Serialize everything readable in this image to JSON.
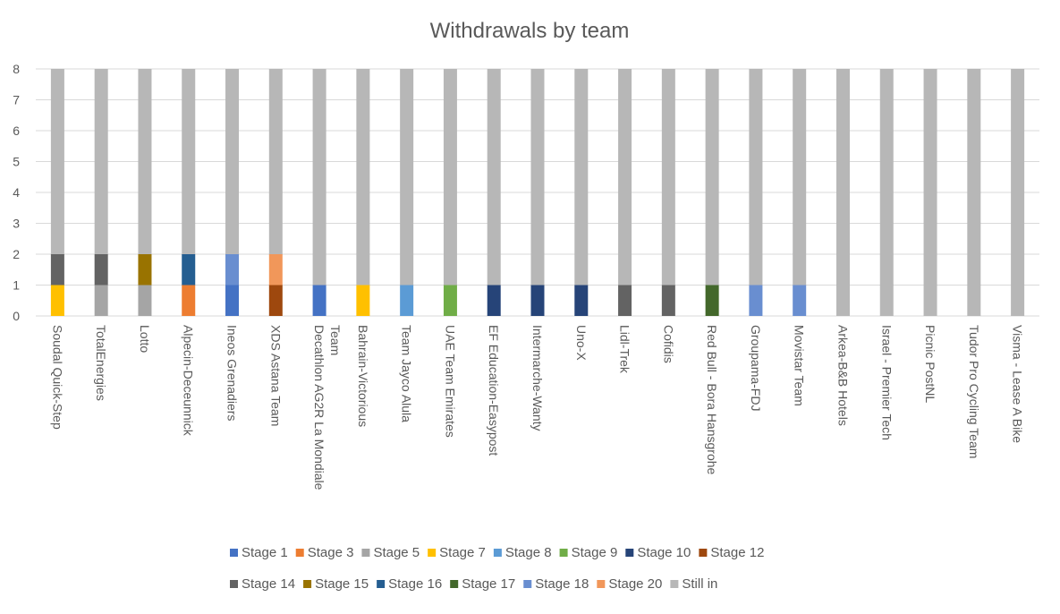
{
  "chart_data": {
    "type": "bar",
    "stacked": true,
    "title": "Withdrawals by team",
    "ylim": [
      0,
      8
    ],
    "yticks": [
      0,
      1,
      2,
      3,
      4,
      5,
      6,
      7,
      8
    ],
    "grid": true,
    "legend_position": "bottom",
    "categories": [
      {
        "line1": "Soudal Quick-Step",
        "line2": ""
      },
      {
        "line1": "TotalEnergies",
        "line2": ""
      },
      {
        "line1": "Lotto",
        "line2": ""
      },
      {
        "line1": "Alpecin-Deceunnick",
        "line2": ""
      },
      {
        "line1": "Ineos Grenadiers",
        "line2": ""
      },
      {
        "line1": "XDS Astana Team",
        "line2": ""
      },
      {
        "line1": "Decathlon AG2R La Mondiale",
        "line2": "Team"
      },
      {
        "line1": "Bahrain-Victorious",
        "line2": ""
      },
      {
        "line1": "Team Jayco Alula",
        "line2": ""
      },
      {
        "line1": "UAE Team Emirates",
        "line2": ""
      },
      {
        "line1": "EF Education-Easypost",
        "line2": ""
      },
      {
        "line1": "Intermarche-Wanty",
        "line2": ""
      },
      {
        "line1": "Uno-X",
        "line2": ""
      },
      {
        "line1": "Lidl-Trek",
        "line2": ""
      },
      {
        "line1": "Cofidis",
        "line2": ""
      },
      {
        "line1": "Red Bull - Bora Hansgrohe",
        "line2": ""
      },
      {
        "line1": "Groupama-FDJ",
        "line2": ""
      },
      {
        "line1": "Movistar Team",
        "line2": ""
      },
      {
        "line1": "Arkea-B&B Hotels",
        "line2": ""
      },
      {
        "line1": "Israel - Premier Tech",
        "line2": ""
      },
      {
        "line1": "Picnic PostNL",
        "line2": ""
      },
      {
        "line1": "Tudor Pro Cycling Team",
        "line2": ""
      },
      {
        "line1": "Visma - Lease A Bike",
        "line2": ""
      }
    ],
    "series": [
      {
        "name": "Stage 1",
        "color": "#4472C4",
        "values": [
          0,
          0,
          0,
          0,
          1,
          0,
          1,
          0,
          0,
          0,
          0,
          0,
          0,
          0,
          0,
          0,
          0,
          0,
          0,
          0,
          0,
          0,
          0
        ]
      },
      {
        "name": "Stage 3",
        "color": "#ED7D31",
        "values": [
          0,
          0,
          0,
          1,
          0,
          0,
          0,
          0,
          0,
          0,
          0,
          0,
          0,
          0,
          0,
          0,
          0,
          0,
          0,
          0,
          0,
          0,
          0
        ]
      },
      {
        "name": "Stage 5",
        "color": "#A5A5A5",
        "values": [
          0,
          1,
          1,
          0,
          0,
          0,
          0,
          0,
          0,
          0,
          0,
          0,
          0,
          0,
          0,
          0,
          0,
          0,
          0,
          0,
          0,
          0,
          0
        ]
      },
      {
        "name": "Stage 7",
        "color": "#FFC000",
        "values": [
          1,
          0,
          0,
          0,
          0,
          0,
          0,
          1,
          0,
          0,
          0,
          0,
          0,
          0,
          0,
          0,
          0,
          0,
          0,
          0,
          0,
          0,
          0
        ]
      },
      {
        "name": "Stage 8",
        "color": "#5B9BD5",
        "values": [
          0,
          0,
          0,
          0,
          0,
          0,
          0,
          0,
          1,
          0,
          0,
          0,
          0,
          0,
          0,
          0,
          0,
          0,
          0,
          0,
          0,
          0,
          0
        ]
      },
      {
        "name": "Stage 9",
        "color": "#70AD47",
        "values": [
          0,
          0,
          0,
          0,
          0,
          0,
          0,
          0,
          0,
          1,
          0,
          0,
          0,
          0,
          0,
          0,
          0,
          0,
          0,
          0,
          0,
          0,
          0
        ]
      },
      {
        "name": "Stage 10",
        "color": "#264478",
        "values": [
          0,
          0,
          0,
          0,
          0,
          0,
          0,
          0,
          0,
          0,
          1,
          1,
          1,
          0,
          0,
          0,
          0,
          0,
          0,
          0,
          0,
          0,
          0
        ]
      },
      {
        "name": "Stage 12",
        "color": "#9E480E",
        "values": [
          0,
          0,
          0,
          0,
          0,
          1,
          0,
          0,
          0,
          0,
          0,
          0,
          0,
          0,
          0,
          0,
          0,
          0,
          0,
          0,
          0,
          0,
          0
        ]
      },
      {
        "name": "Stage 14",
        "color": "#636363",
        "values": [
          1,
          1,
          0,
          0,
          0,
          0,
          0,
          0,
          0,
          0,
          0,
          0,
          0,
          1,
          1,
          0,
          0,
          0,
          0,
          0,
          0,
          0,
          0
        ]
      },
      {
        "name": "Stage 15",
        "color": "#997300",
        "values": [
          0,
          0,
          1,
          0,
          0,
          0,
          0,
          0,
          0,
          0,
          0,
          0,
          0,
          0,
          0,
          0,
          0,
          0,
          0,
          0,
          0,
          0,
          0
        ]
      },
      {
        "name": "Stage 16",
        "color": "#255E91",
        "values": [
          0,
          0,
          0,
          1,
          0,
          0,
          0,
          0,
          0,
          0,
          0,
          0,
          0,
          0,
          0,
          0,
          0,
          0,
          0,
          0,
          0,
          0,
          0
        ]
      },
      {
        "name": "Stage 17",
        "color": "#43682B",
        "values": [
          0,
          0,
          0,
          0,
          0,
          0,
          0,
          0,
          0,
          0,
          0,
          0,
          0,
          0,
          0,
          1,
          0,
          0,
          0,
          0,
          0,
          0,
          0
        ]
      },
      {
        "name": "Stage 18",
        "color": "#698ED0",
        "values": [
          0,
          0,
          0,
          0,
          1,
          0,
          0,
          0,
          0,
          0,
          0,
          0,
          0,
          0,
          0,
          0,
          1,
          1,
          0,
          0,
          0,
          0,
          0
        ]
      },
      {
        "name": "Stage 20",
        "color": "#F1975A",
        "values": [
          0,
          0,
          0,
          0,
          0,
          1,
          0,
          0,
          0,
          0,
          0,
          0,
          0,
          0,
          0,
          0,
          0,
          0,
          0,
          0,
          0,
          0,
          0
        ]
      },
      {
        "name": "Still in",
        "color": "#B7B7B7",
        "values": [
          6,
          6,
          6,
          6,
          6,
          6,
          7,
          7,
          7,
          7,
          7,
          7,
          7,
          7,
          7,
          7,
          7,
          7,
          8,
          8,
          8,
          8,
          8
        ]
      }
    ]
  }
}
